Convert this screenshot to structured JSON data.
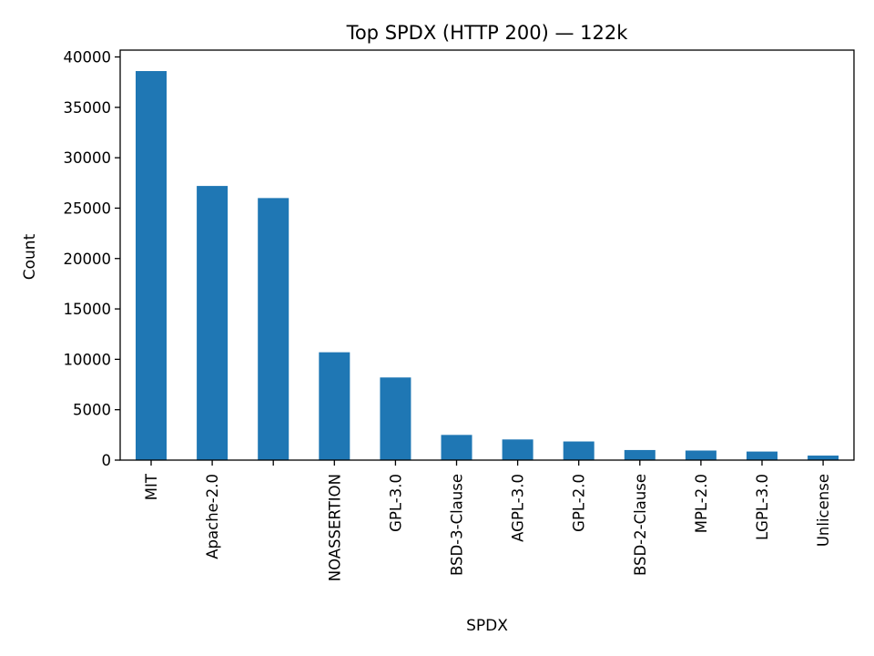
{
  "chart_data": {
    "type": "bar",
    "title": "Top SPDX (HTTP 200) — 122k",
    "xlabel": "SPDX",
    "ylabel": "Count",
    "categories": [
      "MIT",
      "Apache-2.0",
      "",
      "NOASSERTION",
      "GPL-3.0",
      "BSD-3-Clause",
      "AGPL-3.0",
      "GPL-2.0",
      "BSD-2-Clause",
      "MPL-2.0",
      "LGPL-3.0",
      "Unlicense"
    ],
    "values": [
      38600,
      27200,
      26000,
      10700,
      8200,
      2500,
      2050,
      1850,
      1000,
      950,
      850,
      450
    ],
    "ylim": [
      0,
      40000
    ],
    "yticks": [
      0,
      5000,
      10000,
      15000,
      20000,
      25000,
      30000,
      35000,
      40000
    ],
    "grid": false,
    "bar_color": "#1f77b4"
  }
}
